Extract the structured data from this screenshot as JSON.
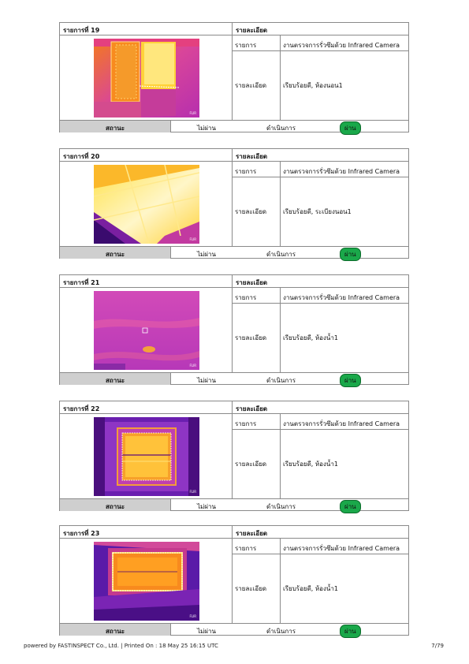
{
  "labels": {
    "detail_header": "รายละเอียด",
    "item_label": "รายการ",
    "detail_label": "รายละเอียด",
    "status_label": "สถานะ",
    "fail": "ไม่ผ่าน",
    "in_progress": "ดำเนินการ",
    "pass": "ผ่าน",
    "camera_brand": "FLIR"
  },
  "items": [
    {
      "title": "รายการที่ 19",
      "item": "งานตรวจการรั่วซึมด้วย Infrared Camera",
      "detail": "เรียบร้อยดี, ห้องนอน1",
      "status": "pass"
    },
    {
      "title": "รายการที่ 20",
      "item": "งานตรวจการรั่วซึมด้วย Infrared Camera",
      "detail": "เรียบร้อยดี, ระเบียงนอน1",
      "status": "pass"
    },
    {
      "title": "รายการที่ 21",
      "item": "งานตรวจการรั่วซึมด้วย Infrared Camera",
      "detail": "เรียบร้อยดี, ห้องน้ำ1",
      "status": "pass"
    },
    {
      "title": "รายการที่ 22",
      "item": "งานตรวจการรั่วซึมด้วย Infrared Camera",
      "detail": "เรียบร้อยดี, ห้องน้ำ1",
      "status": "pass"
    },
    {
      "title": "รายการที่ 23",
      "item": "งานตรวจการรั่วซึมด้วย Infrared Camera",
      "detail": "เรียบร้อยดี, ห้องน้ำ1",
      "status": "pass"
    }
  ],
  "footer": {
    "left": "powered by FASTINSPECT Co., Ltd. | Printed On : 18 May 25 16:15 UTC",
    "page": "7/79"
  }
}
